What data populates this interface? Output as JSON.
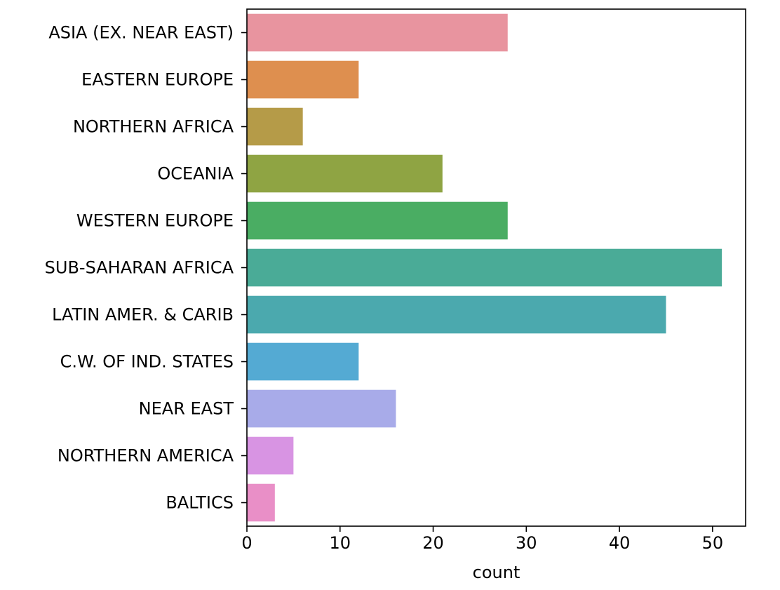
{
  "chart_data": {
    "type": "bar",
    "orientation": "horizontal",
    "categories": [
      "ASIA (EX. NEAR EAST)",
      "EASTERN EUROPE",
      "NORTHERN AFRICA",
      "OCEANIA",
      "WESTERN EUROPE",
      "SUB-SAHARAN AFRICA",
      "LATIN AMER. & CARIB",
      "C.W. OF IND. STATES",
      "NEAR EAST",
      "NORTHERN AMERICA",
      "BALTICS"
    ],
    "values": [
      28,
      12,
      6,
      21,
      28,
      51,
      45,
      12,
      16,
      5,
      3
    ],
    "colors": [
      "#e8949f",
      "#de8f4f",
      "#b59b48",
      "#8fa443",
      "#4aad63",
      "#4aab97",
      "#4ba9ae",
      "#54aad3",
      "#a8abe9",
      "#d894e3",
      "#e98fc7"
    ],
    "xlabel": "count",
    "ylabel": "",
    "title": "",
    "xlim": [
      0,
      53.55
    ],
    "xticks": [
      0,
      10,
      20,
      30,
      40,
      50
    ],
    "grid": false,
    "legend": "none"
  }
}
